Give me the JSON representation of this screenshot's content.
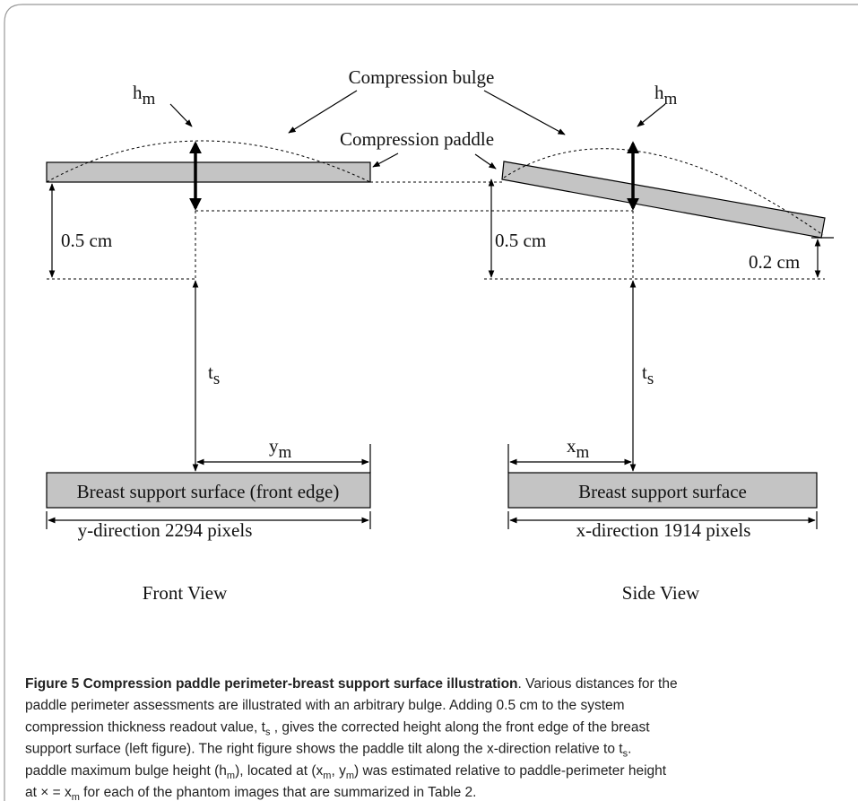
{
  "diagram": {
    "labels": {
      "bulge": "Compression bulge",
      "paddle": "Compression paddle",
      "hm_left": {
        "text": "h",
        "sub": "m"
      },
      "hm_right": {
        "text": "h",
        "sub": "m"
      },
      "half_cm_left": "0.5 cm",
      "half_cm_right": "0.5 cm",
      "tilt_cm": "0.2 cm",
      "ts_left": {
        "text": "t",
        "sub": "s"
      },
      "ts_right": {
        "text": "t",
        "sub": "s"
      },
      "ym": {
        "text": "y",
        "sub": "m"
      },
      "xm": {
        "text": "x",
        "sub": "m"
      },
      "front_surface": "Breast support surface (front edge)",
      "side_surface": "Breast support surface",
      "y_direction": "y-direction 2294 pixels",
      "x_direction": "x-direction 1914 pixels",
      "front_view": "Front View",
      "side_view": "Side View"
    }
  },
  "caption": {
    "lines": [
      [
        {
          "bold": "Figure 5 Compression paddle perimeter-breast support surface illustration"
        },
        ". Various distances for the"
      ],
      [
        "paddle perimeter assessments are illustrated with an arbitrary bulge. Adding 0.5 cm to the system"
      ],
      [
        "compression thickness readout value, t",
        {
          "sub": "s"
        },
        " , gives the corrected height along the front edge of the breast"
      ],
      [
        "support surface (left figure). The right figure shows the paddle tilt along the x-direction relative to t",
        {
          "sub": "s"
        },
        "."
      ],
      [
        "paddle maximum bulge height (h",
        {
          "sub": "m"
        },
        "), located at (x",
        {
          "sub": "m"
        },
        ", y",
        {
          "sub": "m"
        },
        ") was estimated relative to paddle-perimeter height"
      ],
      [
        "at × = x",
        {
          "sub": "m"
        },
        " for each of the phantom images that are summarized in Table 2."
      ]
    ]
  }
}
